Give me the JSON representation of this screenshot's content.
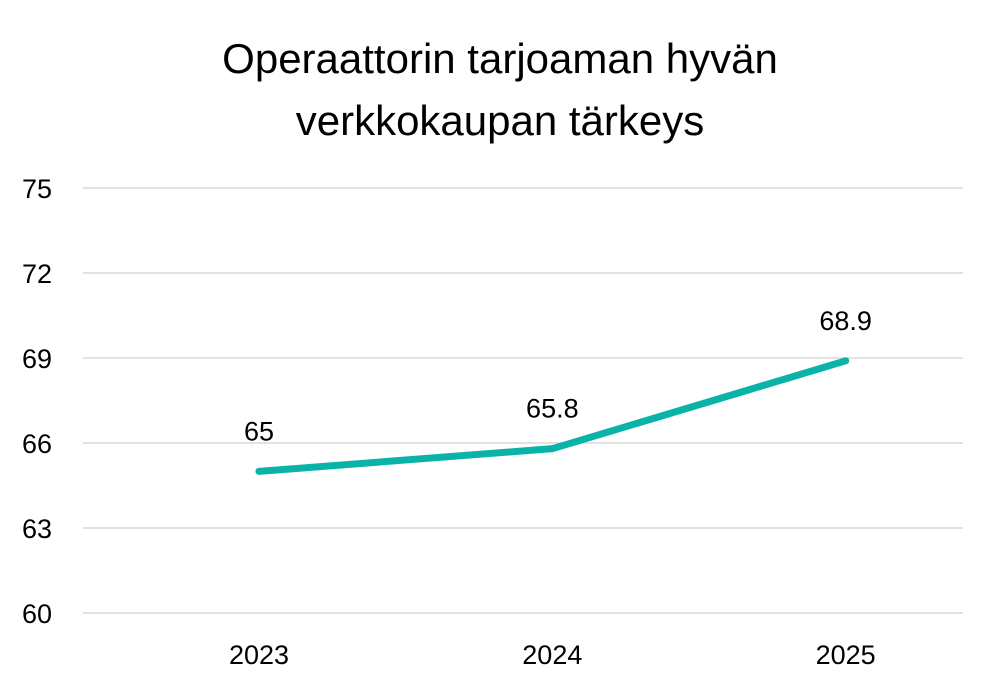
{
  "chart_data": {
    "type": "line",
    "title_lines": [
      "Operaattorin tarjoaman hyvän",
      "verkkokaupan tärkeys"
    ],
    "categories": [
      "2023",
      "2024",
      "2025"
    ],
    "series": [
      {
        "values": [
          65,
          65.8,
          68.9
        ],
        "data_labels": [
          "65",
          "65.8",
          "68.9"
        ],
        "color": "#0ab3a8"
      }
    ],
    "ylim": [
      60,
      75
    ],
    "yticks": [
      60,
      63,
      66,
      69,
      72,
      75
    ],
    "grid": true,
    "legend": "none",
    "gridline_color": "#d9d9d9"
  }
}
